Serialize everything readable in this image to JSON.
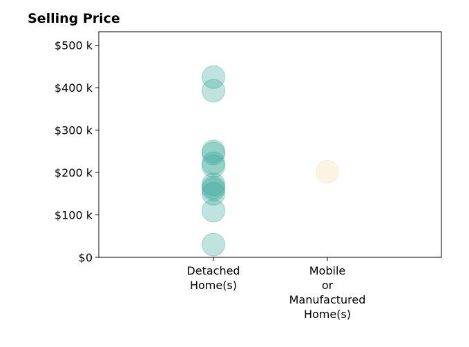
{
  "chart_data": {
    "type": "scatter",
    "title": "Selling Price",
    "xlabel": "",
    "ylabel": "",
    "categories": [
      [
        "Detached",
        "Home(s)"
      ],
      [
        "Mobile",
        "or",
        "Manufactured",
        "Home(s)"
      ]
    ],
    "y_ticks": [
      {
        "value": 0,
        "label": "$0"
      },
      {
        "value": 100000,
        "label": "$100 k"
      },
      {
        "value": 200000,
        "label": "$200 k"
      },
      {
        "value": 300000,
        "label": "$300 k"
      },
      {
        "value": 400000,
        "label": "$400 k"
      },
      {
        "value": 500000,
        "label": "$500 k"
      }
    ],
    "ylim": [
      0,
      532000
    ],
    "grid": false,
    "legend": "none",
    "series": [
      {
        "category_index": 0,
        "color": "#3aa99a",
        "values": [
          425000,
          393000,
          250000,
          245000,
          222000,
          215000,
          172000,
          165000,
          160000,
          150000,
          110000,
          30000
        ]
      },
      {
        "category_index": 1,
        "color": "#f3dcaa",
        "values": [
          202000
        ]
      }
    ]
  }
}
